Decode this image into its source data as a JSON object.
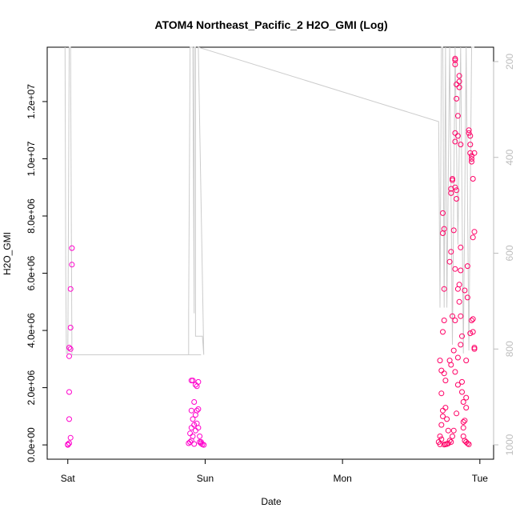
{
  "chart_data": {
    "type": "scatter",
    "title": "ATOM4 Northeast_Pacific_2 H2O_GMI (Log)",
    "xlabel": "Date",
    "ylabel": "H2O_GMI",
    "x_ticks": [
      "Sat",
      "Sun",
      "Mon",
      "Tue"
    ],
    "x_tick_values": [
      0,
      1,
      2,
      3
    ],
    "xlim": [
      -0.15,
      3.1
    ],
    "ylim": [
      -500000,
      13900000
    ],
    "y_ticks": [
      0,
      2000000,
      4000000,
      6000000,
      8000000,
      10000000,
      12000000
    ],
    "y_tick_labels": [
      "0.0e+00",
      "2.0e+06",
      "4.0e+06",
      "6.0e+06",
      "8.0e+06",
      "1.0e+07",
      "1.2e+07"
    ],
    "y2_ticks": [
      200,
      400,
      600,
      800,
      1000
    ],
    "y2lim": [
      1030,
      170
    ],
    "marker": "open-circle",
    "series": [
      {
        "color": "#ff00cc",
        "points": [
          [
            0.0,
            0
          ],
          [
            0.01,
            60000
          ],
          [
            0.0,
            20000
          ],
          [
            0.02,
            250000
          ],
          [
            0.01,
            900000
          ],
          [
            0.01,
            1850000
          ],
          [
            0.01,
            3100000
          ],
          [
            0.02,
            3350000
          ],
          [
            0.01,
            3400000
          ],
          [
            0.02,
            4100000
          ],
          [
            0.02,
            5450000
          ],
          [
            0.03,
            6300000
          ],
          [
            0.03,
            6880000
          ],
          [
            0.88,
            60000
          ],
          [
            0.89,
            100000
          ],
          [
            0.9,
            150000
          ],
          [
            0.89,
            400000
          ],
          [
            0.9,
            600000
          ],
          [
            0.91,
            900000
          ],
          [
            0.9,
            1200000
          ],
          [
            0.92,
            1500000
          ],
          [
            0.91,
            2250000
          ],
          [
            0.9,
            2250000
          ],
          [
            0.93,
            1050000
          ],
          [
            0.94,
            1200000
          ],
          [
            0.92,
            700000
          ],
          [
            0.95,
            2200000
          ],
          [
            0.93,
            2100000
          ],
          [
            0.94,
            2050000
          ],
          [
            0.95,
            600000
          ],
          [
            0.96,
            300000
          ],
          [
            0.96,
            100000
          ],
          [
            0.97,
            50000
          ],
          [
            0.98,
            20000
          ],
          [
            0.99,
            0
          ],
          [
            0.97,
            100000
          ],
          [
            0.95,
            1250000
          ],
          [
            0.93,
            500000
          ],
          [
            0.91,
            300000
          ],
          [
            0.92,
            30000
          ],
          [
            0.94,
            750000
          ]
        ]
      },
      {
        "color": "#ff0066",
        "points": [
          [
            2.7,
            100000
          ],
          [
            2.71,
            300000
          ],
          [
            2.72,
            700000
          ],
          [
            2.73,
            1200000
          ],
          [
            2.72,
            1800000
          ],
          [
            2.74,
            2500000
          ],
          [
            2.71,
            2950000
          ],
          [
            2.73,
            3950000
          ],
          [
            2.74,
            4350000
          ],
          [
            2.74,
            5450000
          ],
          [
            2.73,
            7400000
          ],
          [
            2.74,
            7550000
          ],
          [
            2.73,
            8100000
          ],
          [
            2.72,
            2600000
          ],
          [
            2.75,
            2250000
          ],
          [
            2.75,
            1300000
          ],
          [
            2.76,
            900000
          ],
          [
            2.77,
            500000
          ],
          [
            2.78,
            150000
          ],
          [
            2.78,
            2950000
          ],
          [
            2.79,
            2800000
          ],
          [
            2.78,
            6400000
          ],
          [
            2.79,
            6750000
          ],
          [
            2.79,
            8800000
          ],
          [
            2.79,
            8950000
          ],
          [
            2.8,
            9300000
          ],
          [
            2.8,
            9250000
          ],
          [
            2.81,
            7500000
          ],
          [
            2.82,
            4350000
          ],
          [
            2.82,
            2550000
          ],
          [
            2.82,
            6150000
          ],
          [
            2.82,
            9000000
          ],
          [
            2.83,
            8900000
          ],
          [
            2.82,
            10600000
          ],
          [
            2.82,
            10900000
          ],
          [
            2.83,
            12100000
          ],
          [
            2.82,
            13300000
          ],
          [
            2.82,
            13450000
          ],
          [
            2.82,
            13500000
          ],
          [
            2.83,
            12600000
          ],
          [
            2.84,
            10800000
          ],
          [
            2.84,
            11500000
          ],
          [
            2.85,
            12900000
          ],
          [
            2.85,
            12700000
          ],
          [
            2.85,
            12500000
          ],
          [
            2.84,
            5450000
          ],
          [
            2.85,
            5000000
          ],
          [
            2.86,
            4500000
          ],
          [
            2.86,
            6100000
          ],
          [
            2.86,
            6900000
          ],
          [
            2.86,
            10500000
          ],
          [
            2.87,
            3800000
          ],
          [
            2.87,
            2200000
          ],
          [
            2.88,
            1500000
          ],
          [
            2.9,
            2950000
          ],
          [
            2.91,
            5150000
          ],
          [
            2.91,
            6250000
          ],
          [
            2.92,
            10900000
          ],
          [
            2.93,
            10800000
          ],
          [
            2.92,
            11000000
          ],
          [
            2.93,
            10500000
          ],
          [
            2.93,
            10200000
          ],
          [
            2.94,
            10100000
          ],
          [
            2.94,
            9900000
          ],
          [
            2.95,
            9300000
          ],
          [
            2.95,
            7250000
          ],
          [
            2.96,
            7450000
          ],
          [
            2.95,
            4400000
          ],
          [
            2.95,
            3950000
          ],
          [
            2.96,
            3400000
          ],
          [
            2.96,
            3350000
          ],
          [
            2.94,
            4350000
          ],
          [
            2.93,
            3900000
          ],
          [
            2.9,
            1650000
          ],
          [
            2.9,
            1300000
          ],
          [
            2.89,
            850000
          ],
          [
            2.88,
            600000
          ],
          [
            2.88,
            300000
          ],
          [
            2.89,
            150000
          ],
          [
            2.9,
            100000
          ],
          [
            2.91,
            50000
          ],
          [
            2.92,
            20000
          ],
          [
            2.94,
            10000000
          ],
          [
            2.96,
            10200000
          ],
          [
            2.84,
            2100000
          ],
          [
            2.83,
            1100000
          ],
          [
            2.81,
            500000
          ],
          [
            2.8,
            300000
          ],
          [
            2.79,
            100000
          ],
          [
            2.77,
            50000
          ],
          [
            2.76,
            30000
          ],
          [
            2.75,
            20000
          ],
          [
            2.74,
            10000
          ],
          [
            2.73,
            1000000
          ],
          [
            2.72,
            200000
          ],
          [
            2.71,
            20000
          ],
          [
            2.85,
            5600000
          ],
          [
            2.86,
            3500000
          ],
          [
            2.87,
            1850000
          ],
          [
            2.88,
            800000
          ],
          [
            2.89,
            5400000
          ],
          [
            2.84,
            3050000
          ],
          [
            2.83,
            8600000
          ],
          [
            2.81,
            3300000
          ],
          [
            2.8,
            4500000
          ]
        ]
      }
    ],
    "secondary_line": {
      "color": "#cccccc",
      "points": [
        [
          -0.02,
          13900000
        ],
        [
          -0.015,
          6000000
        ],
        [
          -0.01,
          3200000
        ],
        [
          0.0,
          3200000
        ],
        [
          0.01,
          13900000
        ],
        [
          0.02,
          13900000
        ],
        [
          0.03,
          3150000
        ],
        [
          0.97,
          3150000
        ],
        [
          0.88,
          3150000
        ],
        [
          0.88,
          4600000
        ],
        [
          0.89,
          13900000
        ],
        [
          0.9,
          13900000
        ],
        [
          0.91,
          13900000
        ],
        [
          0.92,
          4600000
        ],
        [
          0.92,
          13900000
        ],
        [
          0.93,
          13900000
        ],
        [
          0.93,
          3800000
        ],
        [
          0.98,
          3800000
        ],
        [
          0.99,
          3150000
        ],
        [
          0.95,
          13900000
        ],
        [
          2.7,
          11300000
        ],
        [
          2.71,
          4800000
        ],
        [
          2.72,
          13900000
        ],
        [
          2.73,
          13900000
        ],
        [
          2.74,
          4800000
        ],
        [
          2.75,
          13900000
        ],
        [
          2.76,
          4800000
        ],
        [
          2.78,
          13900000
        ],
        [
          2.8,
          3500000
        ],
        [
          2.82,
          13900000
        ],
        [
          2.84,
          7000000
        ],
        [
          2.86,
          13900000
        ],
        [
          2.88,
          3200000
        ],
        [
          2.9,
          13900000
        ],
        [
          2.92,
          3300000
        ],
        [
          2.94,
          13900000
        ],
        [
          2.96,
          13900000
        ]
      ]
    }
  }
}
